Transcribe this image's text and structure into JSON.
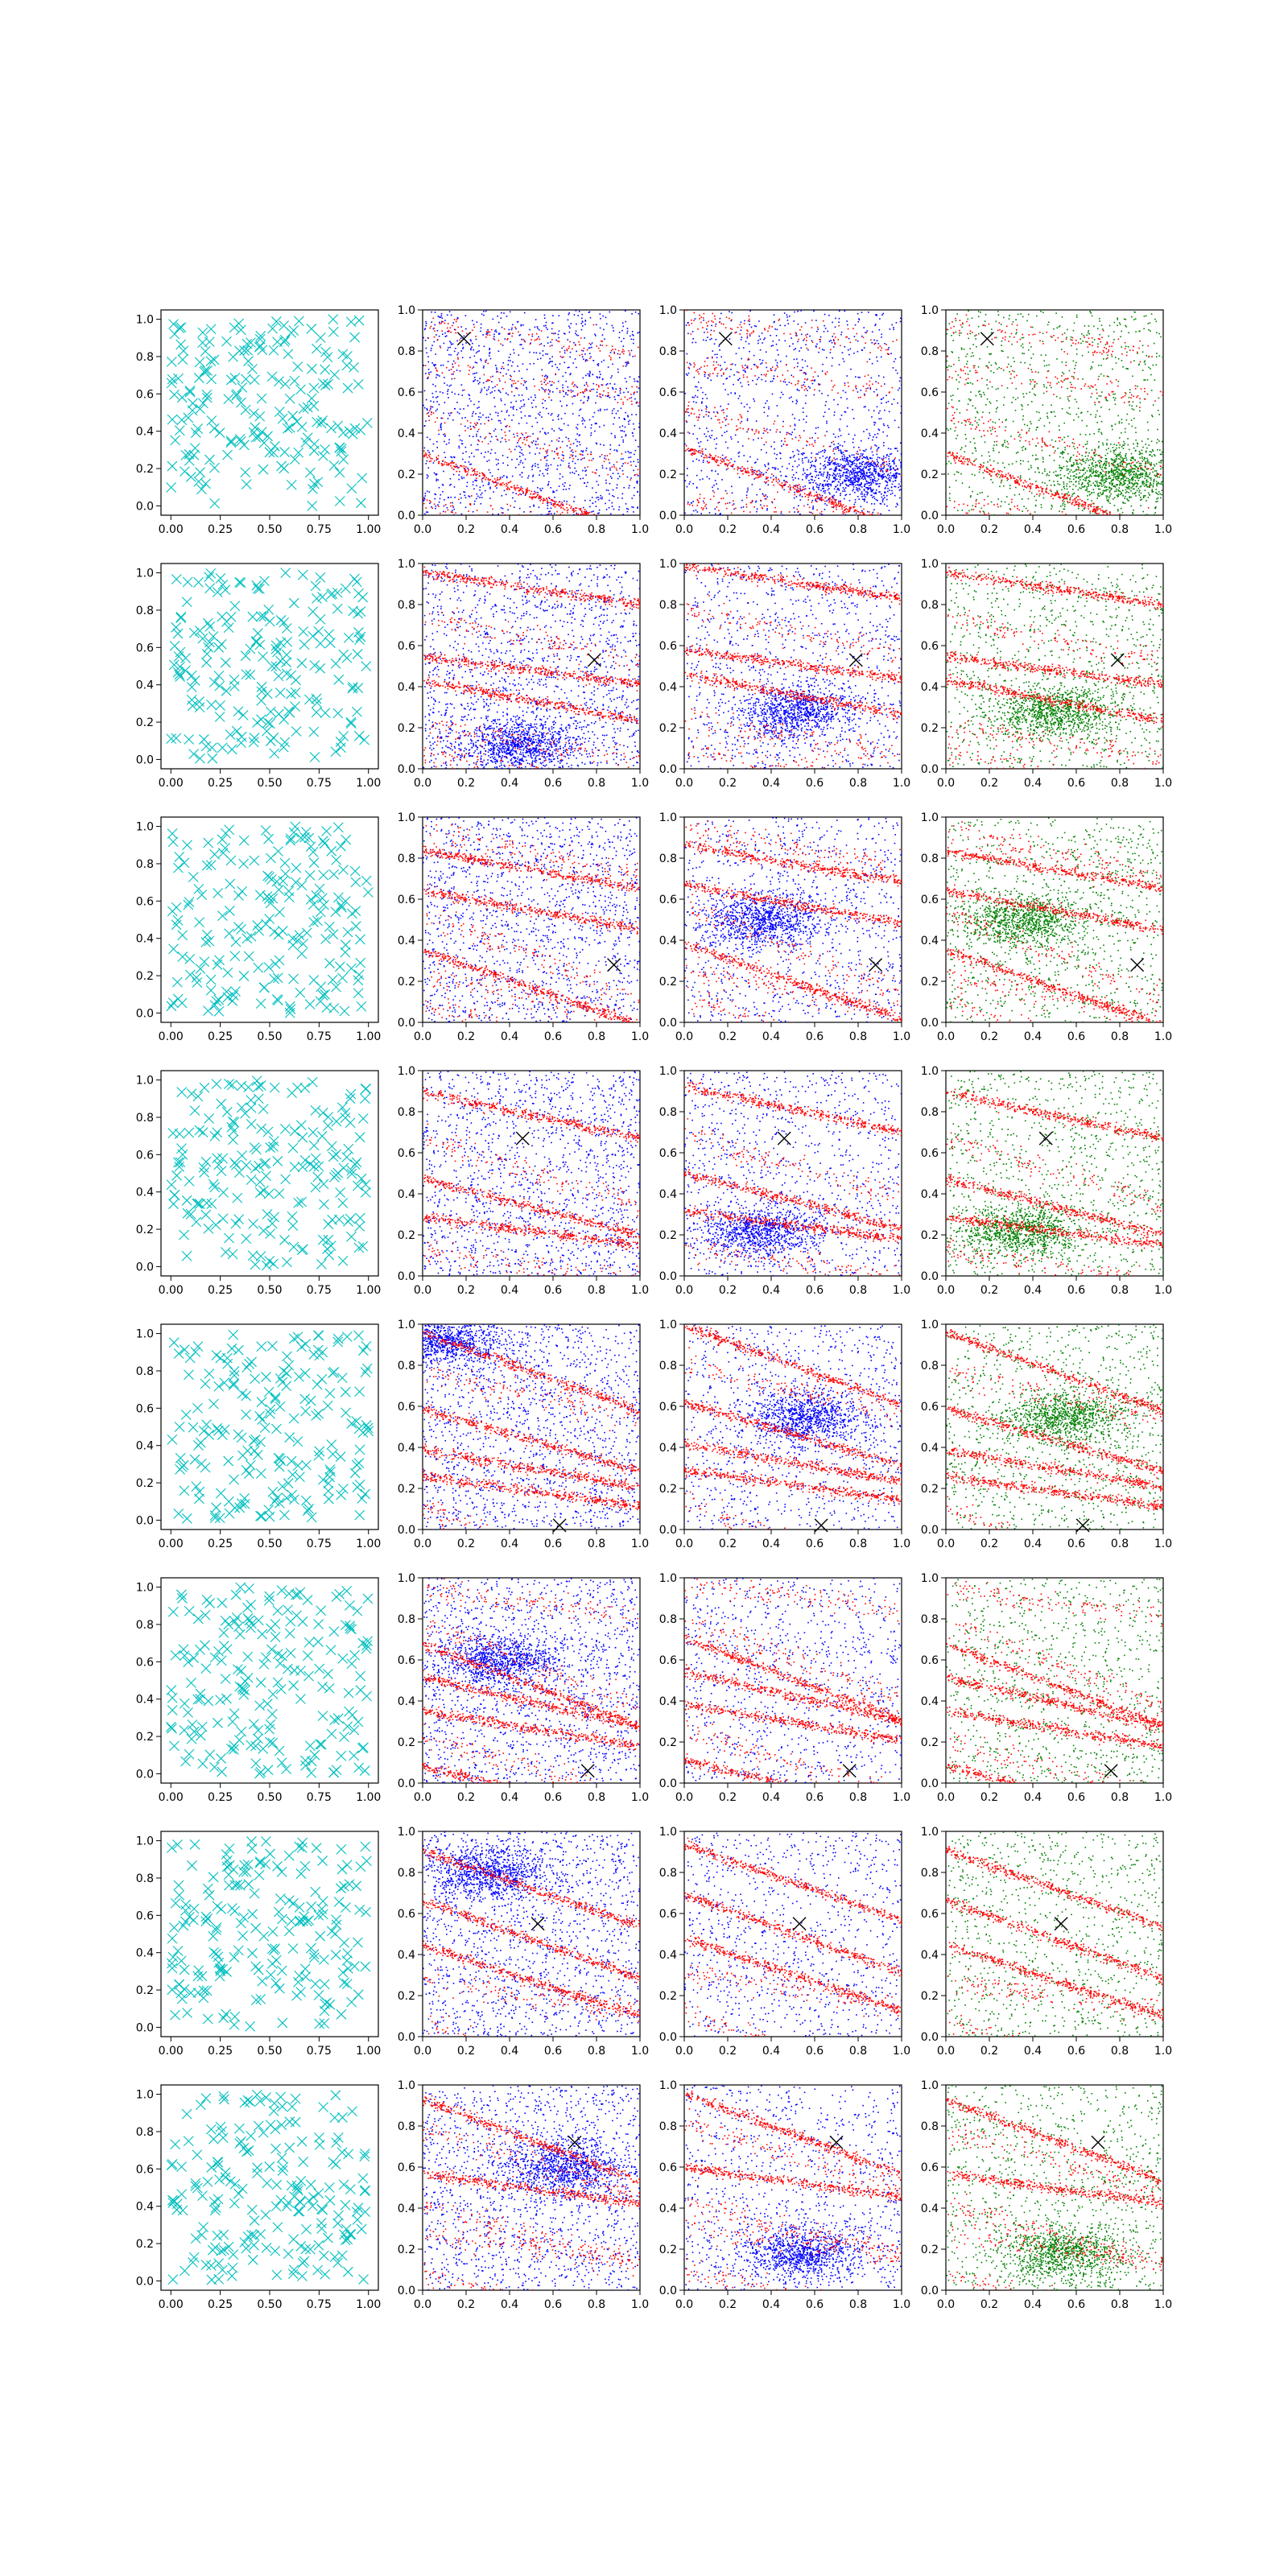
{
  "figure": {
    "rows": 8,
    "cols": 4,
    "colors": {
      "cyan": "#00bfbf",
      "blue": "#0000ff",
      "red": "#ff0000",
      "green": "#008000",
      "marker": "#000000"
    }
  },
  "chart_data": [
    {
      "type": "scatter",
      "panel": "col-1 (all rows)",
      "marker": "x",
      "color": "#00bfbf",
      "xlim": [
        -0.05,
        1.05
      ],
      "ylim": [
        -0.05,
        1.05
      ],
      "xticks": [
        "0.00",
        "0.25",
        "0.50",
        "0.75",
        "1.00"
      ],
      "yticks": [
        "0.0",
        "0.2",
        "0.4",
        "0.6",
        "0.8",
        "1.0"
      ],
      "note_points": "approx. 200 uniformly distributed random points per panel",
      "points_per_panel": 200
    },
    {
      "type": "scatter",
      "panel": "cols 2-4 (all rows)",
      "xlim": [
        0,
        1
      ],
      "ylim": [
        0,
        1
      ],
      "xticks": [
        "0.0",
        "0.2",
        "0.4",
        "0.6",
        "0.8",
        "1.0"
      ],
      "yticks": [
        "0.0",
        "0.2",
        "0.4",
        "0.6",
        "0.8",
        "1.0"
      ],
      "series_colors": {
        "col2": [
          "#0000ff",
          "#ff0000"
        ],
        "col3": [
          "#0000ff",
          "#ff0000"
        ],
        "col4": [
          "#008000",
          "#ff0000"
        ]
      },
      "marked_points": [
        {
          "row": 1,
          "x": 0.19,
          "y": 0.86
        },
        {
          "row": 2,
          "x": 0.79,
          "y": 0.53
        },
        {
          "row": 3,
          "x": 0.88,
          "y": 0.28
        },
        {
          "row": 4,
          "x": 0.46,
          "y": 0.67
        },
        {
          "row": 5,
          "x": 0.63,
          "y": 0.02
        },
        {
          "row": 6,
          "x": 0.76,
          "y": 0.06
        },
        {
          "row": 7,
          "x": 0.53,
          "y": 0.55
        },
        {
          "row": 8,
          "x": 0.7,
          "y": 0.72
        }
      ],
      "blue_clusters": [
        {
          "row": 1,
          "col2": "diffuse",
          "col3": {
            "x": 0.8,
            "y": 0.2
          }
        },
        {
          "row": 2,
          "col2": {
            "x": 0.45,
            "y": 0.12
          },
          "col3": {
            "x": 0.5,
            "y": 0.28
          }
        },
        {
          "row": 3,
          "col2": "diffuse",
          "col3": {
            "x": 0.35,
            "y": 0.5
          }
        },
        {
          "row": 4,
          "col2": "diffuse",
          "col3": {
            "x": 0.35,
            "y": 0.22
          }
        },
        {
          "row": 5,
          "col2": {
            "x": 0.1,
            "y": 0.92
          },
          "col3": {
            "x": 0.55,
            "y": 0.55
          }
        },
        {
          "row": 6,
          "col2": {
            "x": 0.35,
            "y": 0.6
          },
          "col3": "diffuse"
        },
        {
          "row": 7,
          "col2": {
            "x": 0.3,
            "y": 0.8
          },
          "col3": "diffuse"
        },
        {
          "row": 8,
          "col2": {
            "x": 0.65,
            "y": 0.6
          },
          "col3": {
            "x": 0.55,
            "y": 0.18
          }
        }
      ]
    }
  ]
}
